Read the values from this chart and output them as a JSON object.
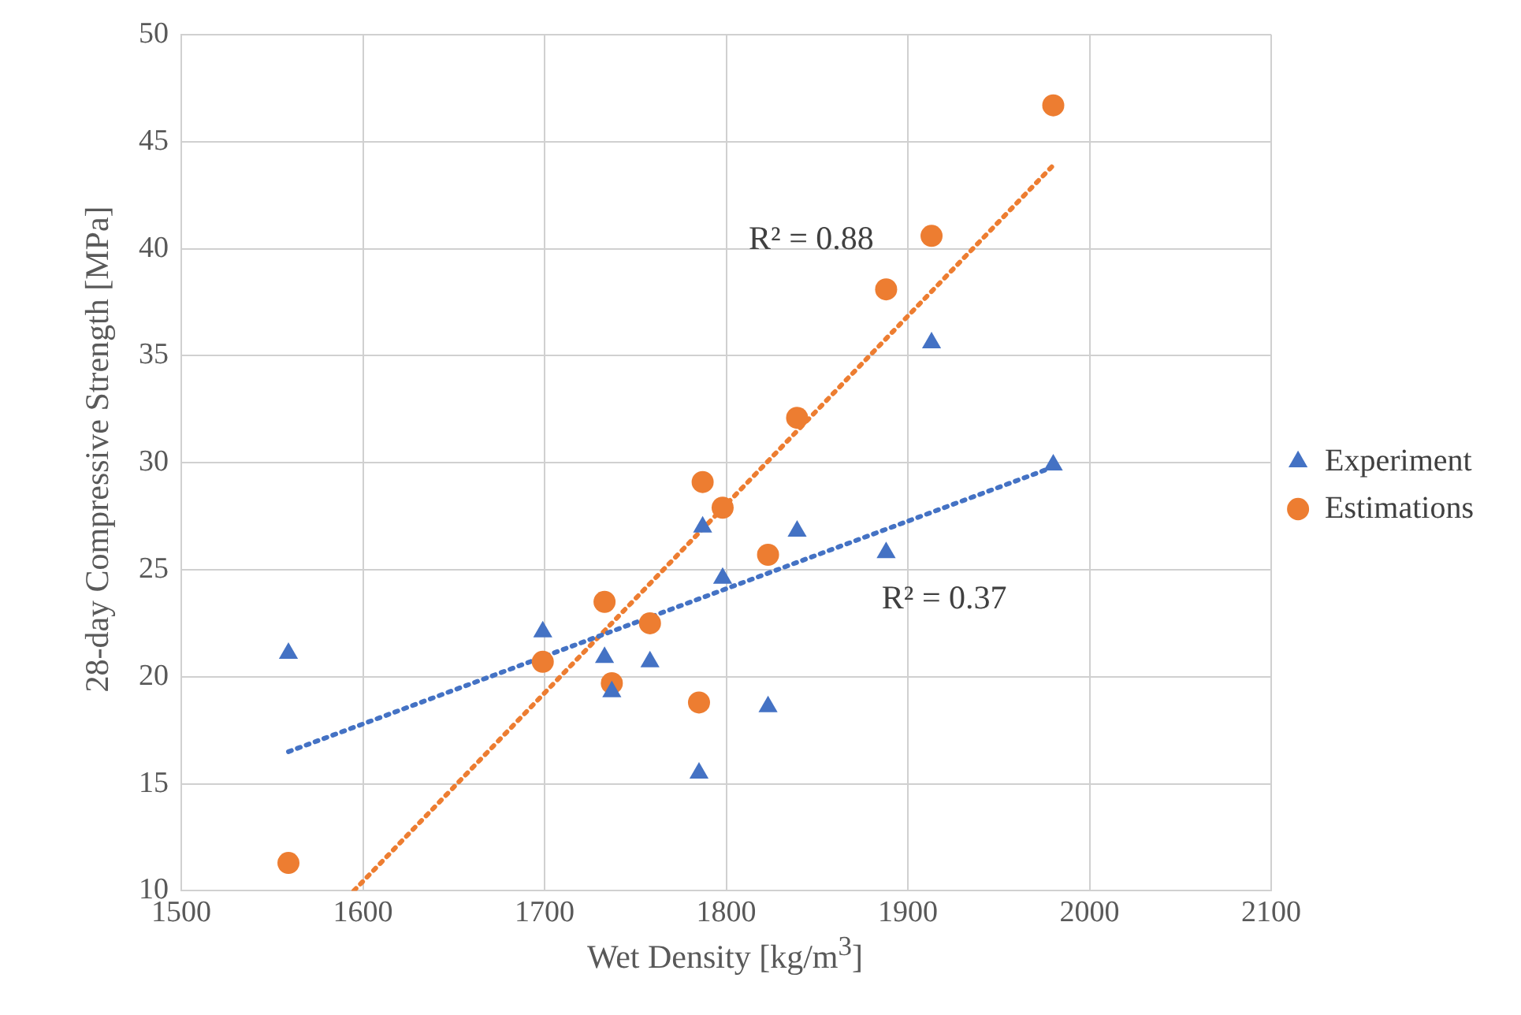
{
  "chart_data": {
    "type": "scatter",
    "xlabel": "Wet Density [kg/m$^{3}$]",
    "ylabel": "28-day Compressive Strength [MPa]",
    "xlim": [
      1500,
      2100
    ],
    "xticks": [
      1500,
      1600,
      1700,
      1800,
      1900,
      2000,
      2100
    ],
    "ylim": [
      10,
      50
    ],
    "yticks": [
      10,
      15,
      20,
      25,
      30,
      35,
      40,
      45,
      50
    ],
    "grid": true,
    "legend": "right",
    "series": [
      {
        "name": "Experiment",
        "color": "#4472c4",
        "marker": "triangle",
        "x": [
          1559,
          1699,
          1733,
          1737,
          1758,
          1785,
          1787,
          1798,
          1823,
          1839,
          1888,
          1913,
          1980
        ],
        "values": [
          21.1,
          22.1,
          20.9,
          19.3,
          20.7,
          15.5,
          27.0,
          24.6,
          18.6,
          26.8,
          25.8,
          35.6,
          29.9
        ]
      },
      {
        "name": "Estimations",
        "color": "#ed7d31",
        "marker": "circle",
        "x": [
          1559,
          1699,
          1733,
          1737,
          1758,
          1785,
          1787,
          1798,
          1823,
          1839,
          1888,
          1913,
          1980
        ],
        "values": [
          11.3,
          20.7,
          23.5,
          19.7,
          22.5,
          18.8,
          29.1,
          27.9,
          25.7,
          32.1,
          38.1,
          40.6,
          46.7
        ]
      },
      {
        "type": "line",
        "color": "#4472c4",
        "line_style": "dotted",
        "marker": "none",
        "x": [
          1559,
          1980
        ],
        "values": [
          16.5,
          29.8
        ]
      },
      {
        "type": "line",
        "color": "#ed7d31",
        "line_style": "dotted",
        "marker": "none",
        "x": [
          1595,
          1980
        ],
        "values": [
          10,
          43.9
        ]
      }
    ],
    "annotations": [
      "R² = 0.88",
      "R² = 0.37"
    ]
  }
}
